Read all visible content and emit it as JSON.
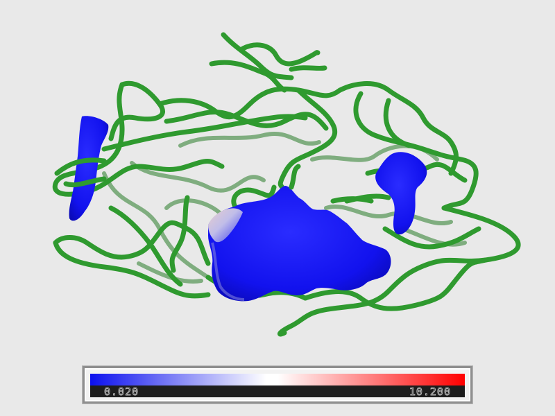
{
  "colorbar": {
    "min_label": "0.020",
    "max_label": "10.200",
    "low_color": "#0b10ee",
    "mid_color": "#ffffff",
    "high_color": "#ff0000"
  },
  "molecule": {
    "backbone_color": "#2f9a2f",
    "surface_color": "#1414f0"
  }
}
